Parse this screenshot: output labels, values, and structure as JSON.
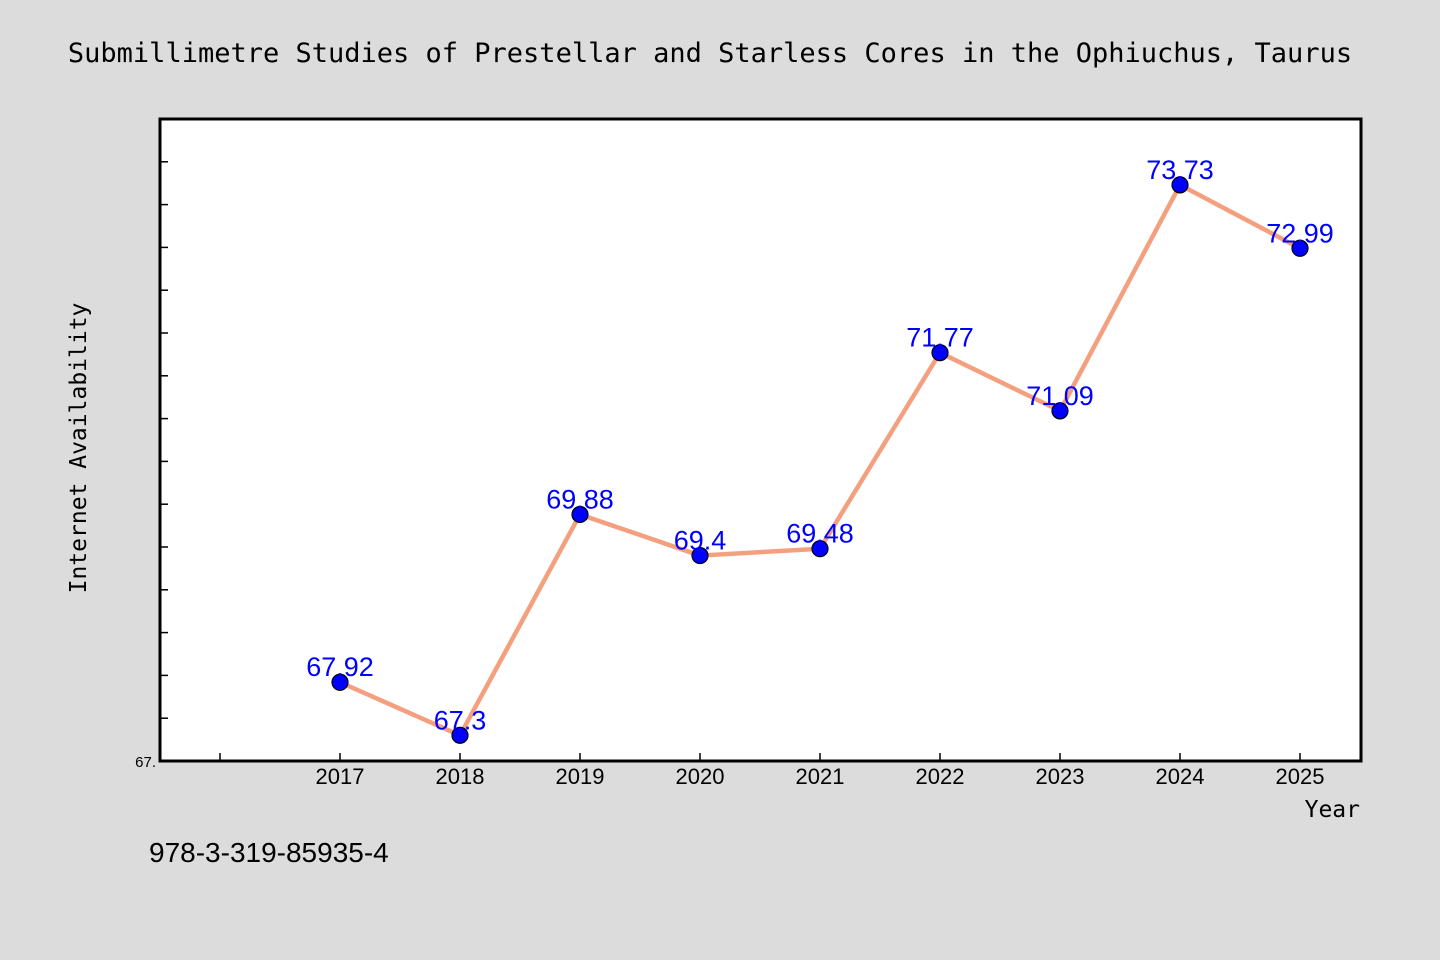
{
  "footnote": "978-3-319-85935-4",
  "chart_data": {
    "type": "line",
    "title": "Submillimetre Studies of Prestellar and Starless Cores in the Ophiuchus, Taurus",
    "xlabel": "Year",
    "ylabel": "Internet Availability",
    "categories": [
      "2017",
      "2018",
      "2019",
      "2020",
      "2021",
      "2022",
      "2023",
      "2024",
      "2025"
    ],
    "series": [
      {
        "values": [
          67.92,
          67.3,
          69.88,
          69.4,
          69.48,
          71.77,
          71.09,
          73.73,
          72.99
        ],
        "labels": [
          "67.92",
          "67.3",
          "69.88",
          "69.4",
          "69.48",
          "71.77",
          "71.09",
          "73.73",
          "72.99"
        ]
      }
    ],
    "ylim": [
      67.0,
      74.5
    ],
    "yticks": [
      67.0
    ],
    "ytick_labels": [
      "67."
    ],
    "grid": false,
    "line_color": "#f4a07f",
    "marker_color": "#0000ff",
    "data_label_color": "#0000ff",
    "background": "#dcdcdc",
    "plot_background": "#ffffff"
  }
}
